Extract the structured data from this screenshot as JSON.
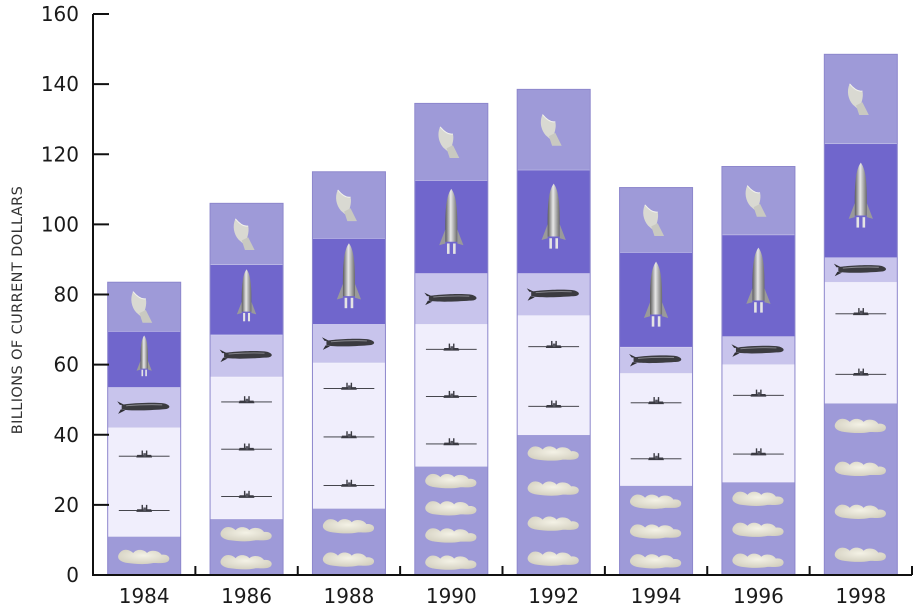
{
  "chart_data": {
    "type": "bar",
    "stacked": true,
    "title": "",
    "xlabel": "",
    "ylabel": "BILLIONS OF CURRENT DOLLARS",
    "ylim": [
      0,
      160
    ],
    "yticks": [
      0,
      20,
      40,
      60,
      80,
      100,
      120,
      140,
      160
    ],
    "categories": [
      "1984",
      "1986",
      "1988",
      "1990",
      "1992",
      "1994",
      "1996",
      "1998"
    ],
    "grid": false,
    "legend": "none",
    "series": [
      {
        "icon": "cloud-icon",
        "color": "#9e9ad8",
        "values": [
          11,
          16,
          19,
          31,
          40,
          25.5,
          26.5,
          49
        ]
      },
      {
        "icon": "plane-icon",
        "color": "#f0eefc",
        "values": [
          31,
          40.5,
          41.5,
          40.5,
          34,
          32,
          33.5,
          34.5
        ]
      },
      {
        "icon": "missile-icon",
        "color": "#c8c4ec",
        "values": [
          11.5,
          12,
          11,
          14.5,
          12,
          7.5,
          8,
          7
        ]
      },
      {
        "icon": "rocket-icon",
        "color": "#7066cc",
        "values": [
          16,
          20,
          24.5,
          26.5,
          29.5,
          27,
          29,
          32.5
        ]
      },
      {
        "icon": "radar-dish-icon",
        "color": "#9e9ad8",
        "values": [
          14,
          17.5,
          19,
          22,
          23,
          18.5,
          19.5,
          25.5
        ]
      }
    ]
  }
}
